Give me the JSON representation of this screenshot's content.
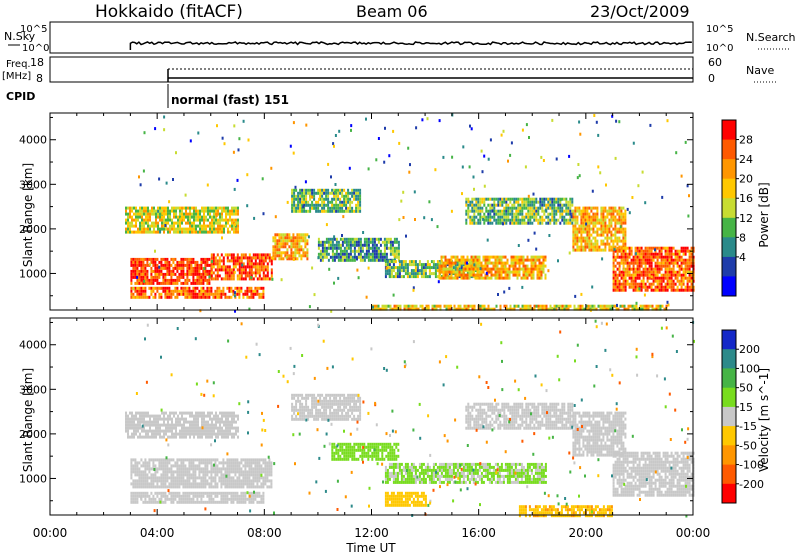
{
  "header": {
    "station": "Hokkaido (fitACF)",
    "beam": "Beam 06",
    "date": "23/Oct/2009"
  },
  "noise_panel": {
    "left_label": "N.Sky",
    "right_label": "N.Search",
    "ticks_left": [
      "10^5",
      "10^0"
    ],
    "ticks_right": [
      "10^5",
      "10^0"
    ]
  },
  "freq_panel": {
    "left_label_line1": "Freq.",
    "left_label_line2": "[MHz]",
    "left_ticks": [
      "18",
      "8"
    ],
    "right_label": "Nave",
    "right_ticks": [
      "60",
      "0"
    ]
  },
  "cpid": {
    "label": "CPID",
    "mode_text": "normal (fast) 151"
  },
  "time_axis": {
    "label": "Time UT",
    "tick_labels": [
      "00:00",
      "04:00",
      "08:00",
      "12:00",
      "16:00",
      "20:00",
      "00:00"
    ]
  },
  "range_axis": {
    "label": "Slant Range [km]",
    "tick_labels": [
      "1000",
      "2000",
      "3000",
      "4000"
    ]
  },
  "power_colorbar": {
    "label": "Power [dB]",
    "tick_labels": [
      "28",
      "24",
      "20",
      "16",
      "12",
      "8",
      "4"
    ],
    "colors": [
      "#ff0000",
      "#ff5a00",
      "#ff9600",
      "#ffc800",
      "#c8dc32",
      "#46b446",
      "#2a8a8a",
      "#1e3caa",
      "#0000ff"
    ]
  },
  "velocity_colorbar": {
    "label": "Velocity [m s^-1]",
    "tick_labels": [
      "200",
      "100",
      "50",
      "15",
      "-15",
      "-50",
      "-100",
      "-200"
    ],
    "colors": [
      "#1428c8",
      "#2d8a8a",
      "#46b446",
      "#78dc1e",
      "#c8c8c8",
      "#ffc800",
      "#ff9600",
      "#ff5a00",
      "#ff0000"
    ]
  },
  "chart_data": [
    {
      "type": "heatmap",
      "name": "power",
      "xlabel": "Time UT",
      "ylabel": "Slant Range [km]",
      "xlim_hours": [
        0,
        24
      ],
      "ylim_km": [
        180,
        4600
      ],
      "colorbar_label": "Power [dB]",
      "data_start_hour": 3.0,
      "regions": [
        {
          "t0": 3.0,
          "t1": 6.0,
          "r0": 800,
          "r1": 1350,
          "value": 28
        },
        {
          "t0": 6.0,
          "t1": 8.3,
          "r0": 850,
          "r1": 1450,
          "value": 27
        },
        {
          "t0": 3.0,
          "t1": 8.0,
          "r0": 450,
          "r1": 700,
          "value": 26
        },
        {
          "t0": 2.8,
          "t1": 7.0,
          "r0": 1900,
          "r1": 2500,
          "value": 18
        },
        {
          "t0": 8.3,
          "t1": 9.6,
          "r0": 1300,
          "r1": 1900,
          "value": 22
        },
        {
          "t0": 9.0,
          "t1": 11.6,
          "r0": 2400,
          "r1": 2900,
          "value": 14
        },
        {
          "t0": 10.0,
          "t1": 13.0,
          "r0": 1300,
          "r1": 1800,
          "value": 12
        },
        {
          "t0": 12.5,
          "t1": 16.0,
          "r0": 900,
          "r1": 1300,
          "value": 14
        },
        {
          "t0": 14.5,
          "t1": 18.5,
          "r0": 900,
          "r1": 1400,
          "value": 22
        },
        {
          "t0": 15.5,
          "t1": 19.5,
          "r0": 2100,
          "r1": 2700,
          "value": 14
        },
        {
          "t0": 19.5,
          "t1": 21.5,
          "r0": 1500,
          "r1": 2500,
          "value": 22
        },
        {
          "t0": 21.0,
          "t1": 24.0,
          "r0": 600,
          "r1": 1600,
          "value": 26
        },
        {
          "t0": 12.0,
          "t1": 23.0,
          "r0": 180,
          "r1": 300,
          "value": 20
        }
      ]
    },
    {
      "type": "heatmap",
      "name": "velocity",
      "xlabel": "Time UT",
      "ylabel": "Slant Range [km]",
      "xlim_hours": [
        0,
        24
      ],
      "ylim_km": [
        180,
        4600
      ],
      "colorbar_label": "Velocity [m s^-1]",
      "data_start_hour": 3.0,
      "regions": [
        {
          "t0": 3.0,
          "t1": 8.3,
          "r0": 800,
          "r1": 1450,
          "value": 0
        },
        {
          "t0": 3.0,
          "t1": 8.0,
          "r0": 450,
          "r1": 700,
          "value": 0
        },
        {
          "t0": 2.8,
          "t1": 7.0,
          "r0": 1900,
          "r1": 2500,
          "value": 0
        },
        {
          "t0": 9.0,
          "t1": 11.6,
          "r0": 2300,
          "r1": 2900,
          "value": 0
        },
        {
          "t0": 10.5,
          "t1": 13.0,
          "r0": 1400,
          "r1": 1800,
          "value": 30
        },
        {
          "t0": 12.5,
          "t1": 18.5,
          "r0": 900,
          "r1": 1350,
          "value": 20
        },
        {
          "t0": 15.5,
          "t1": 19.5,
          "r0": 2100,
          "r1": 2700,
          "value": 0
        },
        {
          "t0": 19.5,
          "t1": 21.5,
          "r0": 1500,
          "r1": 2500,
          "value": 0
        },
        {
          "t0": 21.0,
          "t1": 24.0,
          "r0": 600,
          "r1": 1600,
          "value": 0
        },
        {
          "t0": 12.5,
          "t1": 14.0,
          "r0": 400,
          "r1": 700,
          "value": -30
        },
        {
          "t0": 17.5,
          "t1": 21.0,
          "r0": 180,
          "r1": 400,
          "value": -40
        }
      ]
    }
  ]
}
